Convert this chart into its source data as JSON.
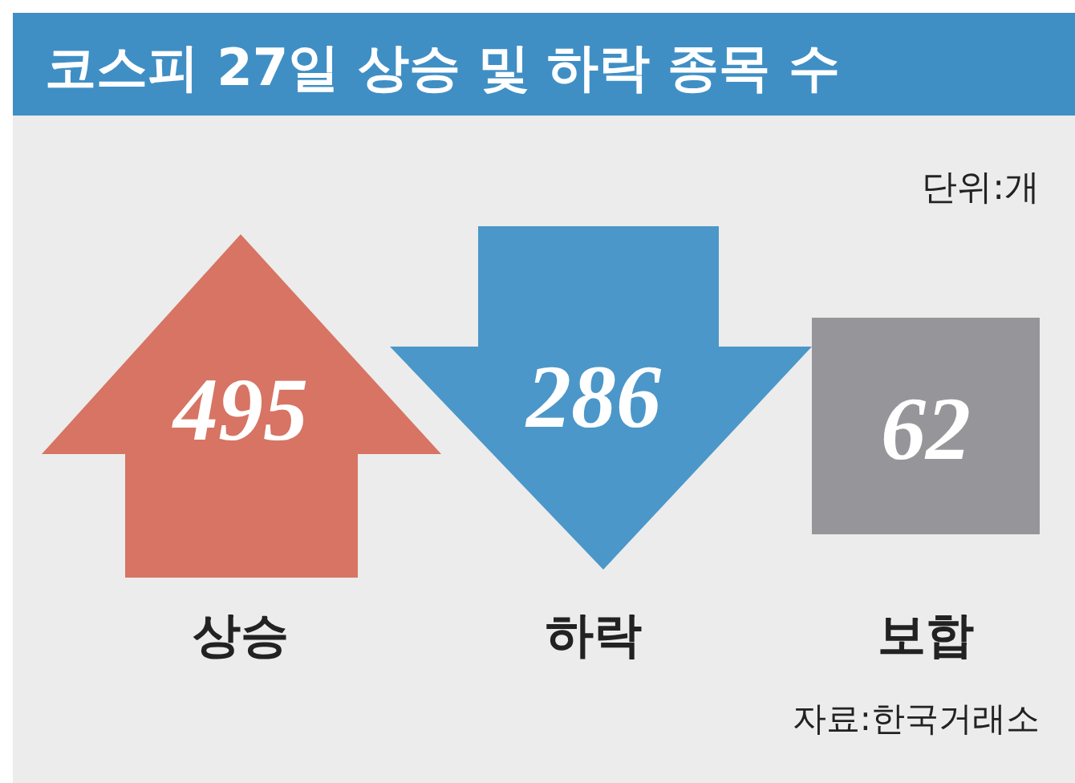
{
  "chart_data": {
    "type": "other",
    "title": "코스피 27일 상승 및 하락 종목 수",
    "subtitle": "단위:개",
    "categories": [
      "상승",
      "하락",
      "보합"
    ],
    "values": [
      495,
      286,
      62
    ],
    "colors": [
      "#d77463",
      "#4b97c9",
      "#96969a"
    ],
    "data_labels": true,
    "annotations": [
      "자료:한국거래소"
    ]
  }
}
